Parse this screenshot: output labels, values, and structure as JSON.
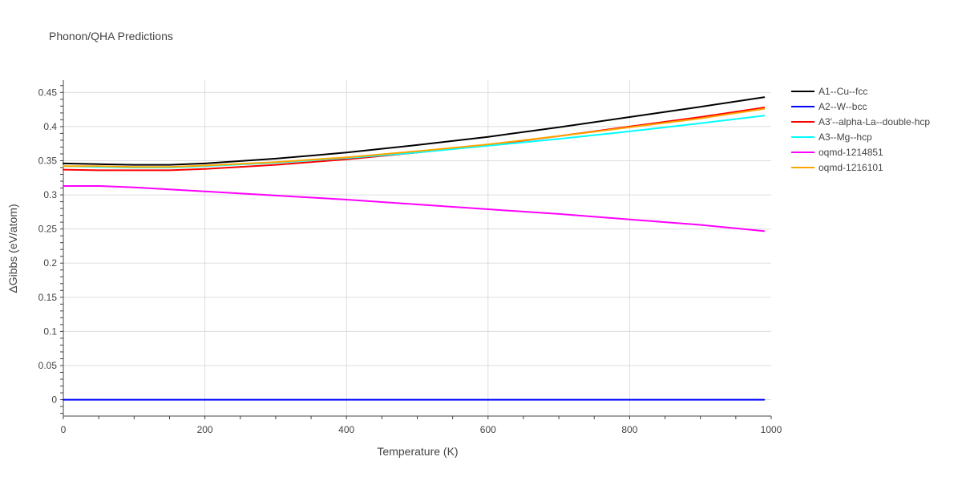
{
  "chart_data": {
    "type": "line",
    "title": "Phonon/QHA Predictions",
    "xlabel": "Temperature (K)",
    "ylabel": "ΔGibbs (eV/atom)",
    "xlim": [
      0,
      1000
    ],
    "ylim": [
      -0.024,
      0.468
    ],
    "x_ticks": [
      0,
      200,
      400,
      600,
      800,
      1000
    ],
    "x_tick_labels": [
      "0",
      "200",
      "400",
      "600",
      "800",
      "1000"
    ],
    "y_ticks": [
      0,
      0.05,
      0.1,
      0.15,
      0.2,
      0.25,
      0.3,
      0.35,
      0.4,
      0.45
    ],
    "y_tick_labels": [
      "0",
      "0.05",
      "0.1",
      "0.15",
      "0.2",
      "0.25",
      "0.3",
      "0.35",
      "0.4",
      "0.45"
    ],
    "grid": true,
    "legend_position": "top-right outside",
    "series": [
      {
        "name": "A1--Cu--fcc",
        "color": "#000000",
        "x": [
          0,
          50,
          100,
          150,
          200,
          300,
          400,
          500,
          600,
          700,
          800,
          900,
          990
        ],
        "y": [
          0.346,
          0.345,
          0.344,
          0.344,
          0.346,
          0.353,
          0.362,
          0.373,
          0.385,
          0.399,
          0.414,
          0.429,
          0.443
        ]
      },
      {
        "name": "A2--W--bcc",
        "color": "#0000ff",
        "x": [
          0,
          990
        ],
        "y": [
          0.0,
          0.0
        ]
      },
      {
        "name": "A3'--alpha-La--double-hcp",
        "color": "#ff0000",
        "x": [
          0,
          50,
          100,
          150,
          200,
          300,
          400,
          500,
          600,
          700,
          800,
          900,
          990
        ],
        "y": [
          0.337,
          0.336,
          0.336,
          0.336,
          0.338,
          0.344,
          0.352,
          0.362,
          0.373,
          0.386,
          0.4,
          0.414,
          0.428
        ]
      },
      {
        "name": "A3--Mg--hcp",
        "color": "#00ffff",
        "x": [
          0,
          50,
          100,
          150,
          200,
          300,
          400,
          500,
          600,
          700,
          800,
          900,
          990
        ],
        "y": [
          0.342,
          0.341,
          0.34,
          0.34,
          0.342,
          0.347,
          0.354,
          0.362,
          0.372,
          0.382,
          0.393,
          0.405,
          0.416
        ]
      },
      {
        "name": "oqmd-1214851",
        "color": "#ff00ff",
        "x": [
          0,
          50,
          100,
          150,
          200,
          300,
          400,
          500,
          600,
          700,
          800,
          900,
          990
        ],
        "y": [
          0.313,
          0.313,
          0.311,
          0.308,
          0.305,
          0.299,
          0.293,
          0.286,
          0.279,
          0.272,
          0.264,
          0.256,
          0.247
        ]
      },
      {
        "name": "oqmd-1216101",
        "color": "#ffa500",
        "x": [
          0,
          50,
          100,
          150,
          200,
          300,
          400,
          500,
          600,
          700,
          800,
          900,
          990
        ],
        "y": [
          0.342,
          0.342,
          0.341,
          0.341,
          0.343,
          0.348,
          0.355,
          0.364,
          0.374,
          0.386,
          0.399,
          0.412,
          0.426
        ]
      }
    ]
  }
}
